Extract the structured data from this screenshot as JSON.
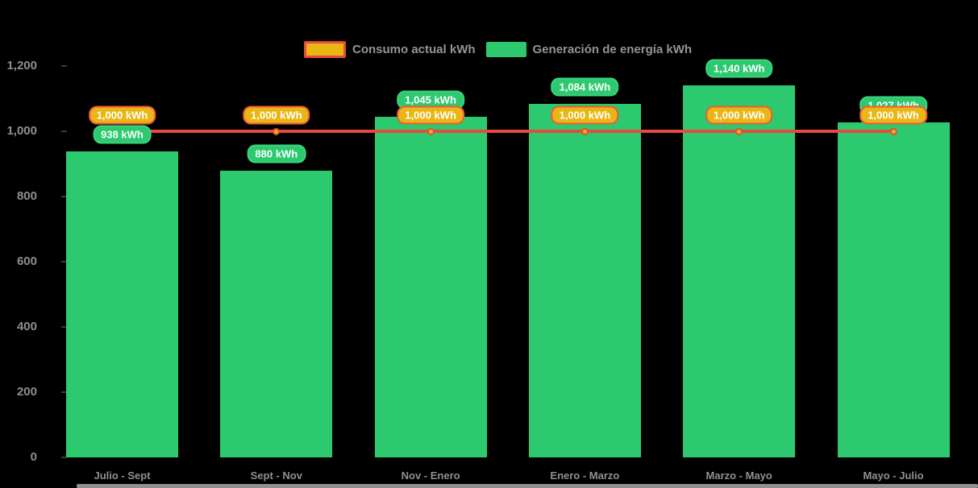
{
  "legend": {
    "items": [
      {
        "label": "Consumo actual kWh",
        "type": "line",
        "swatch_fill": "#eab616",
        "swatch_border": "#e84a3c"
      },
      {
        "label": "Generación de energía kWh",
        "type": "bar",
        "swatch_fill": "#2dc96f"
      }
    ]
  },
  "chart_data": {
    "type": "bar",
    "title": "",
    "xlabel": "",
    "ylabel": "",
    "categories": [
      "Julio - Sept",
      "Sept - Nov",
      "Nov - Enero",
      "Enero - Marzo",
      "Marzo - Mayo",
      "Mayo - Julio"
    ],
    "series": [
      {
        "name": "Generación de energía kWh",
        "type": "bar",
        "color": "#2dc96f",
        "values": [
          938,
          880,
          1045,
          1084,
          1140,
          1027
        ],
        "data_labels": [
          "938 kWh",
          "880 kWh",
          "1,045 kWh",
          "1,084 kWh",
          "1,140 kWh",
          "1,027 kWh"
        ],
        "label_bg": "#2dc96f",
        "label_text_color": "#ffffff"
      },
      {
        "name": "Consumo actual kWh",
        "type": "line",
        "line_color": "#e8493c",
        "marker_fill": "#eab616",
        "marker_border": "#e84a3c",
        "values": [
          1000,
          1000,
          1000,
          1000,
          1000,
          1000
        ],
        "data_labels": [
          "1,000 kWh",
          "1,000 kWh",
          "1,000 kWh",
          "1,000 kWh",
          "1,000 kWh",
          "1,000 kWh"
        ],
        "label_bg": "#eab616",
        "label_border": "#ee5b3a",
        "label_text_color": "#ffffff"
      }
    ],
    "ylim": [
      0,
      1200
    ],
    "yticks": [
      0,
      200,
      400,
      600,
      800,
      1000,
      1200
    ],
    "ytick_labels": [
      "0",
      "200",
      "400",
      "600",
      "800",
      "1,000",
      "1,200"
    ],
    "grid": false,
    "legend_position": "top-center",
    "background": "#000000",
    "axis_text_color": "#8f8f8f"
  }
}
